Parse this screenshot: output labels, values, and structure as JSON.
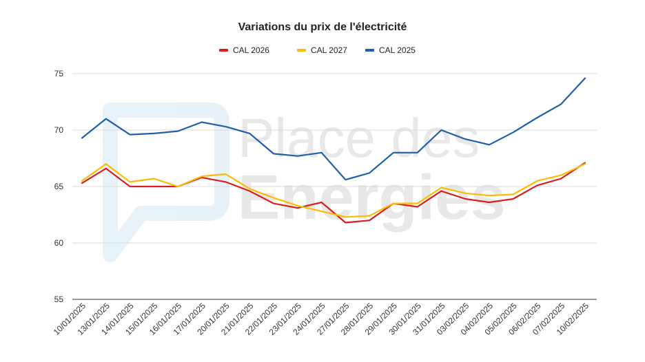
{
  "watermark": {
    "line1": "Place des",
    "line2": "Energies"
  },
  "chart_data": {
    "type": "line",
    "title": "Variations du prix de l'électricité",
    "xlabel": "",
    "ylabel": "",
    "ylim": [
      55,
      75
    ],
    "yticks": [
      55,
      60,
      65,
      70,
      75
    ],
    "grid": true,
    "legend_position": "top",
    "categories": [
      "10/01/2025",
      "13/01/2025",
      "14/01/2025",
      "15/01/2025",
      "16/01/2025",
      "17/01/2025",
      "20/01/2025",
      "21/01/2025",
      "22/01/2025",
      "23/01/2025",
      "24/01/2025",
      "27/01/2025",
      "28/01/2025",
      "29/01/2025",
      "30/01/2025",
      "31/01/2025",
      "03/02/2025",
      "04/02/2025",
      "05/02/2025",
      "06/02/2025",
      "07/02/2025",
      "10/02/2025"
    ],
    "series": [
      {
        "name": "CAL 2026",
        "color": "#d91e1e",
        "values": [
          65.3,
          66.6,
          65.0,
          65.0,
          65.0,
          65.8,
          65.4,
          64.6,
          63.5,
          63.1,
          63.6,
          61.8,
          62.0,
          63.5,
          63.2,
          64.6,
          63.9,
          63.6,
          63.9,
          65.1,
          65.7,
          67.1
        ]
      },
      {
        "name": "CAL 2027",
        "color": "#fbbc04",
        "values": [
          65.5,
          67.0,
          65.4,
          65.7,
          65.0,
          65.9,
          66.1,
          64.8,
          64.0,
          63.3,
          62.8,
          62.3,
          62.4,
          63.5,
          63.5,
          64.9,
          64.4,
          64.2,
          64.3,
          65.5,
          66.0,
          67.0
        ]
      },
      {
        "name": "CAL 2025",
        "color": "#1f5ea8",
        "values": [
          69.3,
          71.0,
          69.6,
          69.7,
          69.9,
          70.7,
          70.3,
          69.7,
          67.9,
          67.7,
          68.0,
          65.6,
          66.2,
          68.0,
          68.0,
          70.0,
          69.2,
          68.7,
          69.8,
          71.1,
          72.3,
          74.6
        ]
      }
    ]
  }
}
